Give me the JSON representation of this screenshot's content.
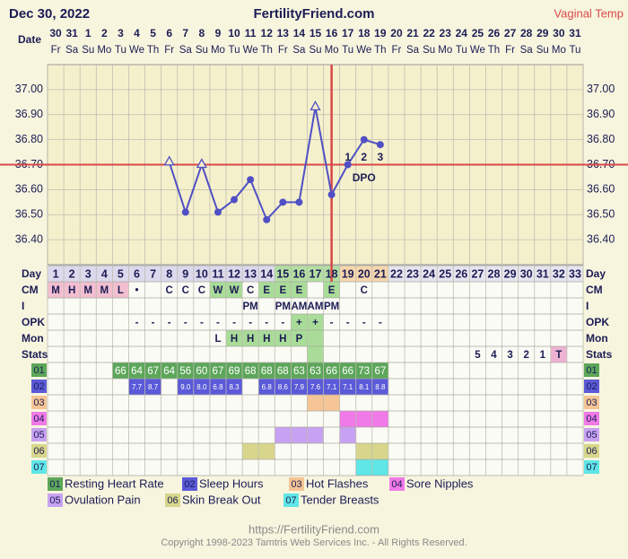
{
  "header": {
    "date": "Dec 30, 2022",
    "site": "FertilityFriend.com",
    "temp_type": "Vaginal Temp",
    "date_label": "Date"
  },
  "dates": [
    30,
    31,
    1,
    2,
    3,
    4,
    5,
    6,
    7,
    8,
    9,
    10,
    11,
    12,
    13,
    14,
    15,
    16,
    17,
    18,
    19,
    20,
    21,
    22,
    23,
    24,
    25,
    26,
    27,
    28,
    29,
    30,
    31
  ],
  "weekdays": [
    "Fr",
    "Sa",
    "Su",
    "Mo",
    "Tu",
    "We",
    "Th",
    "Fr",
    "Sa",
    "Su",
    "Mo",
    "Tu",
    "We",
    "Th",
    "Fr",
    "Sa",
    "Su",
    "Mo",
    "Tu",
    "We",
    "Th",
    "Fr",
    "Sa",
    "Su",
    "Mo",
    "Tu",
    "We",
    "Th",
    "Fr",
    "Sa",
    "Su",
    "Mo",
    "Tu"
  ],
  "chart_data": {
    "type": "line",
    "categories": [
      1,
      2,
      3,
      4,
      5,
      6,
      7,
      8,
      9,
      10,
      11,
      12,
      13,
      14,
      15,
      16,
      17,
      18,
      19,
      20,
      21,
      22,
      23,
      24,
      25,
      26,
      27,
      28,
      29,
      30,
      31,
      32,
      33
    ],
    "values": [
      null,
      null,
      null,
      null,
      null,
      null,
      null,
      36.71,
      36.51,
      36.7,
      36.51,
      36.56,
      36.64,
      36.48,
      36.55,
      36.55,
      36.93,
      36.58,
      36.7,
      36.8,
      36.78,
      null,
      null,
      null,
      null,
      null,
      null,
      null,
      null,
      null,
      null,
      null,
      null
    ],
    "color": "#5050c4",
    "ylim": [
      36.3,
      37.1
    ],
    "yticks": [
      {
        "value": 36.4,
        "label": "36.40"
      },
      {
        "value": 36.5,
        "label": "36.50"
      },
      {
        "value": 36.6,
        "label": "36.60"
      },
      {
        "value": 36.7,
        "label": "36.70"
      },
      {
        "value": 36.8,
        "label": "36.80"
      },
      {
        "value": 36.9,
        "label": "36.90"
      },
      {
        "value": 37.0,
        "label": "37.00"
      }
    ],
    "grid": true,
    "coverline": 36.7,
    "coverline_color": "#d94848",
    "ovulation_day": 18,
    "open_marker_days": [
      8,
      10,
      17
    ],
    "dpo": {
      "label": "DPO",
      "days": [
        19,
        20,
        21
      ],
      "labels": [
        "1",
        "2",
        "3"
      ]
    }
  },
  "day_row": {
    "label": "Day",
    "highlights": [
      {
        "from": 1,
        "to": 14,
        "color": "#dcd9ec"
      },
      {
        "from": 15,
        "to": 18,
        "color": "#b3dfa2"
      },
      {
        "from": 19,
        "to": 21,
        "color": "#f6d6ad"
      }
    ]
  },
  "rows": [
    {
      "label": "CM",
      "cells": [
        {
          "day": 1,
          "text": "M"
        },
        {
          "day": 2,
          "text": "H"
        },
        {
          "day": 3,
          "text": "M"
        },
        {
          "day": 4,
          "text": "M"
        },
        {
          "day": 5,
          "text": "L"
        },
        {
          "day": 6,
          "text": "•"
        },
        {
          "day": 8,
          "text": "C"
        },
        {
          "day": 9,
          "text": "C"
        },
        {
          "day": 10,
          "text": "C"
        },
        {
          "day": 11,
          "text": "W"
        },
        {
          "day": 12,
          "text": "W"
        },
        {
          "day": 13,
          "text": "C"
        },
        {
          "day": 14,
          "text": "E"
        },
        {
          "day": 15,
          "text": "E"
        },
        {
          "day": 16,
          "text": "E"
        },
        {
          "day": 18,
          "text": "E"
        },
        {
          "day": 20,
          "text": "C"
        }
      ],
      "highlights": [
        {
          "from": 1,
          "to": 5,
          "color": "#f2bfd0"
        },
        {
          "from": 11,
          "to": 12,
          "color": "#a9dc98"
        },
        {
          "from": 14,
          "to": 16,
          "color": "#a9dc98"
        },
        {
          "from": 18,
          "to": 18,
          "color": "#a9dc98"
        }
      ]
    },
    {
      "label": "I",
      "cells": [
        {
          "day": 13,
          "text": "PM"
        },
        {
          "day": 15,
          "text": "PM"
        },
        {
          "day": 16,
          "text": "AM"
        },
        {
          "day": 17,
          "text": "AM"
        },
        {
          "day": 18,
          "text": "PM"
        }
      ],
      "highlights": []
    },
    {
      "label": "OPK",
      "cells": [
        {
          "day": 6,
          "text": "-"
        },
        {
          "day": 7,
          "text": "-"
        },
        {
          "day": 8,
          "text": "-"
        },
        {
          "day": 9,
          "text": "-"
        },
        {
          "day": 10,
          "text": "-"
        },
        {
          "day": 11,
          "text": "-"
        },
        {
          "day": 12,
          "text": "-"
        },
        {
          "day": 13,
          "text": "-"
        },
        {
          "day": 14,
          "text": "-"
        },
        {
          "day": 15,
          "text": "-"
        },
        {
          "day": 16,
          "text": "+"
        },
        {
          "day": 17,
          "text": "+"
        },
        {
          "day": 18,
          "text": "-"
        },
        {
          "day": 19,
          "text": "-"
        },
        {
          "day": 20,
          "text": "-"
        },
        {
          "day": 21,
          "text": "-"
        }
      ],
      "highlights": [
        {
          "from": 16,
          "to": 17,
          "color": "#a9dc98"
        }
      ]
    },
    {
      "label": "Mon",
      "cells": [
        {
          "day": 11,
          "text": "L"
        },
        {
          "day": 12,
          "text": "H"
        },
        {
          "day": 13,
          "text": "H"
        },
        {
          "day": 14,
          "text": "H"
        },
        {
          "day": 15,
          "text": "H"
        },
        {
          "day": 16,
          "text": "P"
        }
      ],
      "highlights": [
        {
          "from": 12,
          "to": 17,
          "color": "#a9dc98"
        }
      ]
    },
    {
      "label": "Stats",
      "cells": [
        {
          "day": 27,
          "text": "5"
        },
        {
          "day": 28,
          "text": "4"
        },
        {
          "day": 29,
          "text": "3"
        },
        {
          "day": 30,
          "text": "2"
        },
        {
          "day": 31,
          "text": "1"
        },
        {
          "day": 32,
          "text": "T"
        }
      ],
      "highlights": [
        {
          "from": 17,
          "to": 17,
          "color": "#a9dc98"
        },
        {
          "from": 32,
          "to": 32,
          "color": "#eeb2d2"
        }
      ]
    }
  ],
  "symptoms": [
    {
      "code": "01",
      "name": "Resting Heart Rate",
      "color": "#5ca65a",
      "cells": [
        {
          "day": 5,
          "text": "66"
        },
        {
          "day": 6,
          "text": "64"
        },
        {
          "day": 7,
          "text": "67"
        },
        {
          "day": 8,
          "text": "64"
        },
        {
          "day": 9,
          "text": "56"
        },
        {
          "day": 10,
          "text": "60"
        },
        {
          "day": 11,
          "text": "67"
        },
        {
          "day": 12,
          "text": "69"
        },
        {
          "day": 13,
          "text": "68"
        },
        {
          "day": 14,
          "text": "68"
        },
        {
          "day": 15,
          "text": "68"
        },
        {
          "day": 16,
          "text": "63"
        },
        {
          "day": 17,
          "text": "63"
        },
        {
          "day": 18,
          "text": "66"
        },
        {
          "day": 19,
          "text": "66"
        },
        {
          "day": 20,
          "text": "73"
        },
        {
          "day": 21,
          "text": "67"
        }
      ]
    },
    {
      "code": "02",
      "name": "Sleep Hours",
      "color": "#5b5ad8",
      "cells": [
        {
          "day": 6,
          "text": "7.7"
        },
        {
          "day": 7,
          "text": "8.7"
        },
        {
          "day": 9,
          "text": "9.0"
        },
        {
          "day": 10,
          "text": "8.0"
        },
        {
          "day": 11,
          "text": "6.8"
        },
        {
          "day": 12,
          "text": "8.3"
        },
        {
          "day": 14,
          "text": "6.8"
        },
        {
          "day": 15,
          "text": "8.6"
        },
        {
          "day": 16,
          "text": "7.9"
        },
        {
          "day": 17,
          "text": "7.6"
        },
        {
          "day": 18,
          "text": "7.1"
        },
        {
          "day": 19,
          "text": "7.1"
        },
        {
          "day": 20,
          "text": "8.1"
        },
        {
          "day": 21,
          "text": "8.8"
        }
      ]
    },
    {
      "code": "03",
      "name": "Hot Flashes",
      "color": "#f5c595",
      "cells": [
        {
          "day": 17
        },
        {
          "day": 18
        }
      ]
    },
    {
      "code": "04",
      "name": "Sore Nipples",
      "color": "#f07ae8",
      "cells": [
        {
          "day": 19
        },
        {
          "day": 20
        },
        {
          "day": 21
        }
      ]
    },
    {
      "code": "05",
      "name": "Ovulation Pain",
      "color": "#c8a2f2",
      "cells": [
        {
          "day": 15
        },
        {
          "day": 16
        },
        {
          "day": 17
        },
        {
          "day": 19
        }
      ]
    },
    {
      "code": "06",
      "name": "Skin Break Out",
      "color": "#d7d68c",
      "cells": [
        {
          "day": 13
        },
        {
          "day": 14
        },
        {
          "day": 20
        },
        {
          "day": 21
        }
      ]
    },
    {
      "code": "07",
      "name": "Tender Breasts",
      "color": "#5fe6e6",
      "cells": [
        {
          "day": 20
        },
        {
          "day": 21
        }
      ]
    }
  ],
  "footer": {
    "url": "https://FertilityFriend.com",
    "copyright": "Copyright 1998-2023 Tamtris Web Services Inc. - All Rights Reserved."
  }
}
